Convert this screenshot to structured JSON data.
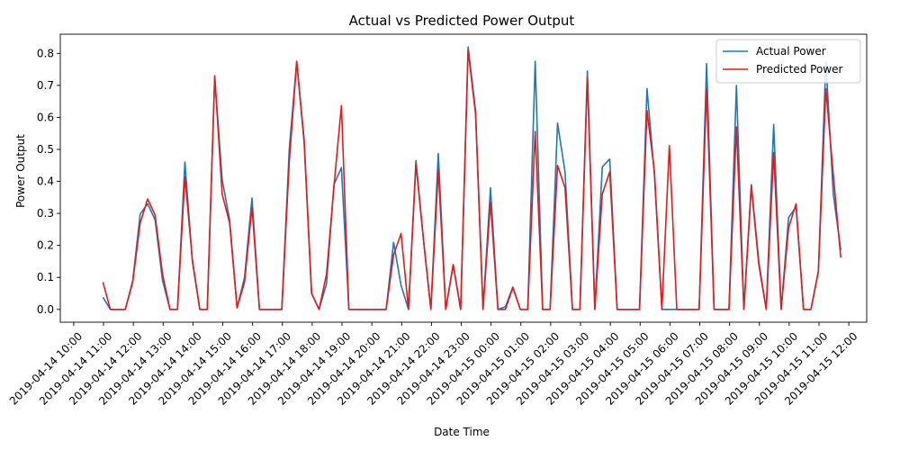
{
  "chart_data": {
    "type": "line",
    "title": "Actual vs Predicted Power Output",
    "xlabel": "Date Time",
    "ylabel": "Power Output",
    "ylim": [
      -0.04,
      0.86
    ],
    "yticks": [
      0.0,
      0.1,
      0.2,
      0.3,
      0.4,
      0.5,
      0.6,
      0.7,
      0.8
    ],
    "ytick_labels": [
      "0.0",
      "0.1",
      "0.2",
      "0.3",
      "0.4",
      "0.5",
      "0.6",
      "0.7",
      "0.8"
    ],
    "x_start": "2019-04-14 10:00",
    "xticks": [
      "2019-04-14 10:00",
      "2019-04-14 11:00",
      "2019-04-14 12:00",
      "2019-04-14 13:00",
      "2019-04-14 14:00",
      "2019-04-14 15:00",
      "2019-04-14 16:00",
      "2019-04-14 17:00",
      "2019-04-14 18:00",
      "2019-04-14 19:00",
      "2019-04-14 20:00",
      "2019-04-14 21:00",
      "2019-04-14 22:00",
      "2019-04-14 23:00",
      "2019-04-15 00:00",
      "2019-04-15 01:00",
      "2019-04-15 02:00",
      "2019-04-15 03:00",
      "2019-04-15 04:00",
      "2019-04-15 05:00",
      "2019-04-15 06:00",
      "2019-04-15 07:00",
      "2019-04-15 08:00",
      "2019-04-15 09:00",
      "2019-04-15 10:00",
      "2019-04-15 11:00",
      "2019-04-15 12:00"
    ],
    "grid": false,
    "legend_position": "top-right",
    "series": [
      {
        "name": "Actual Power",
        "color": "#1f77b4",
        "points": [
          [
            0.98,
            0.038
          ],
          [
            1.23,
            0.0
          ],
          [
            1.48,
            0.0
          ],
          [
            1.73,
            0.0
          ],
          [
            1.98,
            0.09
          ],
          [
            2.23,
            0.298
          ],
          [
            2.48,
            0.33
          ],
          [
            2.73,
            0.28
          ],
          [
            2.98,
            0.09
          ],
          [
            3.23,
            0.0
          ],
          [
            3.48,
            0.0
          ],
          [
            3.73,
            0.46
          ],
          [
            3.98,
            0.15
          ],
          [
            4.23,
            0.0
          ],
          [
            4.48,
            0.0
          ],
          [
            4.73,
            0.725
          ],
          [
            4.98,
            0.405
          ],
          [
            5.23,
            0.28
          ],
          [
            5.48,
            0.005
          ],
          [
            5.73,
            0.1
          ],
          [
            5.98,
            0.348
          ],
          [
            6.23,
            0.0
          ],
          [
            6.48,
            0.0
          ],
          [
            6.73,
            0.0
          ],
          [
            6.98,
            0.0
          ],
          [
            7.23,
            0.5
          ],
          [
            7.48,
            0.775
          ],
          [
            7.73,
            0.52
          ],
          [
            7.98,
            0.05
          ],
          [
            8.23,
            0.0
          ],
          [
            8.48,
            0.08
          ],
          [
            8.73,
            0.39
          ],
          [
            8.98,
            0.443
          ],
          [
            9.23,
            0.0
          ],
          [
            9.48,
            0.0
          ],
          [
            9.73,
            0.0
          ],
          [
            9.98,
            0.0
          ],
          [
            10.23,
            0.0
          ],
          [
            10.48,
            0.0
          ],
          [
            10.73,
            0.21
          ],
          [
            10.98,
            0.075
          ],
          [
            11.23,
            0.0
          ],
          [
            11.48,
            0.465
          ],
          [
            11.73,
            0.22
          ],
          [
            11.98,
            0.0
          ],
          [
            12.23,
            0.487
          ],
          [
            12.48,
            0.0
          ],
          [
            12.73,
            0.14
          ],
          [
            12.98,
            0.0
          ],
          [
            13.23,
            0.82
          ],
          [
            13.48,
            0.62
          ],
          [
            13.73,
            0.0
          ],
          [
            13.98,
            0.38
          ],
          [
            14.23,
            0.0
          ],
          [
            14.48,
            0.008
          ],
          [
            14.73,
            0.07
          ],
          [
            14.98,
            0.0
          ],
          [
            15.23,
            0.0
          ],
          [
            15.48,
            0.775
          ],
          [
            15.73,
            0.0
          ],
          [
            15.98,
            0.0
          ],
          [
            16.23,
            0.582
          ],
          [
            16.48,
            0.43
          ],
          [
            16.73,
            0.0
          ],
          [
            16.98,
            0.0
          ],
          [
            17.23,
            0.745
          ],
          [
            17.48,
            0.0
          ],
          [
            17.73,
            0.445
          ],
          [
            17.98,
            0.47
          ],
          [
            18.23,
            0.0
          ],
          [
            18.48,
            0.0
          ],
          [
            18.73,
            0.0
          ],
          [
            18.98,
            0.0
          ],
          [
            19.23,
            0.69
          ],
          [
            19.48,
            0.42
          ],
          [
            19.73,
            0.0
          ],
          [
            19.98,
            0.0
          ],
          [
            20.23,
            0.0
          ],
          [
            20.48,
            0.0
          ],
          [
            20.73,
            0.0
          ],
          [
            20.98,
            0.0
          ],
          [
            21.23,
            0.768
          ],
          [
            21.48,
            0.0
          ],
          [
            21.73,
            0.0
          ],
          [
            21.98,
            0.0
          ],
          [
            22.23,
            0.7
          ],
          [
            22.48,
            0.0
          ],
          [
            22.73,
            0.39
          ],
          [
            22.98,
            0.15
          ],
          [
            23.23,
            0.0
          ],
          [
            23.48,
            0.578
          ],
          [
            23.73,
            0.0
          ],
          [
            23.98,
            0.287
          ],
          [
            24.23,
            0.32
          ],
          [
            24.48,
            0.0
          ],
          [
            24.73,
            0.0
          ],
          [
            24.98,
            0.12
          ],
          [
            25.23,
            0.775
          ],
          [
            25.48,
            0.36
          ],
          [
            25.73,
            0.185
          ]
        ]
      },
      {
        "name": "Predicted Power",
        "color": "#e41a1c",
        "points": [
          [
            0.98,
            0.085
          ],
          [
            1.23,
            0.0
          ],
          [
            1.48,
            0.0
          ],
          [
            1.73,
            0.0
          ],
          [
            1.98,
            0.085
          ],
          [
            2.23,
            0.27
          ],
          [
            2.48,
            0.345
          ],
          [
            2.73,
            0.295
          ],
          [
            2.98,
            0.11
          ],
          [
            3.23,
            0.0
          ],
          [
            3.48,
            0.0
          ],
          [
            3.73,
            0.415
          ],
          [
            3.98,
            0.155
          ],
          [
            4.23,
            0.0
          ],
          [
            4.48,
            0.0
          ],
          [
            4.73,
            0.73
          ],
          [
            4.98,
            0.36
          ],
          [
            5.23,
            0.27
          ],
          [
            5.48,
            0.005
          ],
          [
            5.73,
            0.085
          ],
          [
            5.98,
            0.32
          ],
          [
            6.23,
            0.0
          ],
          [
            6.48,
            0.0
          ],
          [
            6.73,
            0.0
          ],
          [
            6.98,
            0.0
          ],
          [
            7.23,
            0.46
          ],
          [
            7.48,
            0.775
          ],
          [
            7.73,
            0.53
          ],
          [
            7.98,
            0.05
          ],
          [
            8.23,
            0.0
          ],
          [
            8.48,
            0.11
          ],
          [
            8.73,
            0.385
          ],
          [
            8.98,
            0.637
          ],
          [
            9.23,
            0.0
          ],
          [
            9.48,
            0.0
          ],
          [
            9.73,
            0.0
          ],
          [
            9.98,
            0.0
          ],
          [
            10.23,
            0.0
          ],
          [
            10.48,
            0.0
          ],
          [
            10.73,
            0.17
          ],
          [
            10.98,
            0.237
          ],
          [
            11.23,
            0.0
          ],
          [
            11.48,
            0.455
          ],
          [
            11.73,
            0.22
          ],
          [
            11.98,
            0.0
          ],
          [
            12.23,
            0.435
          ],
          [
            12.48,
            0.0
          ],
          [
            12.73,
            0.14
          ],
          [
            12.98,
            0.0
          ],
          [
            13.23,
            0.81
          ],
          [
            13.48,
            0.61
          ],
          [
            13.73,
            0.0
          ],
          [
            13.98,
            0.335
          ],
          [
            14.23,
            0.0
          ],
          [
            14.48,
            0.0
          ],
          [
            14.73,
            0.068
          ],
          [
            14.98,
            0.0
          ],
          [
            15.23,
            0.0
          ],
          [
            15.48,
            0.556
          ],
          [
            15.73,
            0.0
          ],
          [
            15.98,
            0.0
          ],
          [
            16.23,
            0.45
          ],
          [
            16.48,
            0.38
          ],
          [
            16.73,
            0.0
          ],
          [
            16.98,
            0.0
          ],
          [
            17.23,
            0.725
          ],
          [
            17.48,
            0.0
          ],
          [
            17.73,
            0.36
          ],
          [
            17.98,
            0.43
          ],
          [
            18.23,
            0.0
          ],
          [
            18.48,
            0.0
          ],
          [
            18.73,
            0.0
          ],
          [
            18.98,
            0.0
          ],
          [
            19.23,
            0.622
          ],
          [
            19.48,
            0.43
          ],
          [
            19.73,
            0.0
          ],
          [
            19.98,
            0.512
          ],
          [
            20.23,
            0.0
          ],
          [
            20.48,
            0.0
          ],
          [
            20.73,
            0.0
          ],
          [
            20.98,
            0.0
          ],
          [
            21.23,
            0.69
          ],
          [
            21.48,
            0.0
          ],
          [
            21.73,
            0.0
          ],
          [
            21.98,
            0.0
          ],
          [
            22.23,
            0.57
          ],
          [
            22.48,
            0.0
          ],
          [
            22.73,
            0.385
          ],
          [
            22.98,
            0.14
          ],
          [
            23.23,
            0.0
          ],
          [
            23.48,
            0.49
          ],
          [
            23.73,
            0.0
          ],
          [
            23.98,
            0.255
          ],
          [
            24.23,
            0.33
          ],
          [
            24.48,
            0.0
          ],
          [
            24.73,
            0.0
          ],
          [
            24.98,
            0.12
          ],
          [
            25.23,
            0.69
          ],
          [
            25.48,
            0.42
          ],
          [
            25.73,
            0.162
          ]
        ]
      }
    ]
  }
}
